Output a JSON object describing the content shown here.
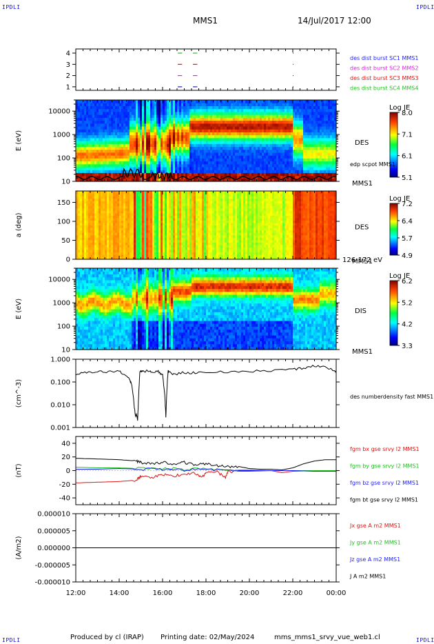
{
  "header": {
    "corner_tl": "IPDLI",
    "corner_tr": "IPDLI",
    "corner_bl": "IPDLI",
    "corner_br": "IPDLI",
    "mission": "MMS1",
    "datetime": "14/Jul/2017 12:00"
  },
  "footer": {
    "produced_by": "Produced by cl (IRAP)",
    "printing_date": "Printing date: 02/May/2024",
    "script": "mms_mms1_srvy_vue_web1.cl"
  },
  "x_axis": {
    "ticks": [
      "12:00",
      "14:00",
      "16:00",
      "18:00",
      "20:00",
      "22:00",
      "00:00"
    ],
    "range_hours": [
      12,
      24
    ]
  },
  "chart_data": [
    {
      "type": "scatter",
      "id": "burst-availability",
      "yticks": [
        "4",
        "3",
        "2",
        "1"
      ],
      "legend": [
        {
          "name": "des dist burst SC1 MMS1",
          "color": "#1a1aff"
        },
        {
          "name": "des dist burst SC2 MMS2",
          "color": "#e020e0"
        },
        {
          "name": "des dist burst SC3 MMS3",
          "color": "#e01010"
        },
        {
          "name": "des dist burst SC4 MMS4",
          "color": "#20c020"
        }
      ],
      "segments": [
        {
          "sc": 4,
          "start": 16.7,
          "end": 16.9,
          "color": "#20c020"
        },
        {
          "sc": 4,
          "start": 17.4,
          "end": 17.6,
          "color": "#20c020"
        },
        {
          "sc": 3,
          "start": 16.7,
          "end": 16.9,
          "color": "#e01010"
        },
        {
          "sc": 3,
          "start": 17.4,
          "end": 17.6,
          "color": "#e01010"
        },
        {
          "sc": 2,
          "start": 16.7,
          "end": 16.9,
          "color": "#e020e0"
        },
        {
          "sc": 2,
          "start": 17.4,
          "end": 17.6,
          "color": "#e020e0"
        },
        {
          "sc": 1,
          "start": 16.7,
          "end": 16.9,
          "color": "#1a1aff"
        },
        {
          "sc": 1,
          "start": 17.4,
          "end": 17.6,
          "color": "#1a1aff"
        }
      ]
    },
    {
      "type": "heatmap",
      "id": "des-energy",
      "ylabel": "E (eV)",
      "scale": "log",
      "ylim": [
        10,
        30000
      ],
      "yticks": [
        "10000",
        "1000",
        "100",
        "10"
      ],
      "instrument": "DES",
      "overlay_label": "edp scpot MMS1",
      "bottom_label": "MMS1",
      "colorbar": {
        "title": "Log JE",
        "ticks": [
          "8.0",
          "7.1",
          "6.1",
          "5.1"
        ],
        "range": [
          5.1,
          8.0
        ]
      }
    },
    {
      "type": "heatmap",
      "id": "des-pitch",
      "ylabel": "a (deg)",
      "ylim": [
        0,
        180
      ],
      "yticks": [
        "150",
        "100",
        "50",
        "0"
      ],
      "instrument": "DES",
      "bottom_label": "MMS1",
      "energy_band": "126-172 eV",
      "colorbar": {
        "title": "Log JE",
        "ticks": [
          "7.2",
          "6.4",
          "5.7",
          "4.9"
        ],
        "range": [
          4.9,
          7.2
        ]
      }
    },
    {
      "type": "heatmap",
      "id": "dis-energy",
      "ylabel": "E (eV)",
      "scale": "log",
      "ylim": [
        10,
        30000
      ],
      "yticks": [
        "10000",
        "1000",
        "100",
        "10"
      ],
      "instrument": "DIS",
      "bottom_label": "MMS1",
      "colorbar": {
        "title": "Log JE",
        "ticks": [
          "6.2",
          "5.2",
          "4.2",
          "3.3"
        ],
        "range": [
          3.3,
          6.2
        ]
      }
    },
    {
      "type": "line",
      "id": "density",
      "ylabel": "(cm^-3)",
      "scale": "log",
      "ylim": [
        0.001,
        1.0
      ],
      "yticks": [
        "1.000",
        "0.100",
        "0.010",
        "0.001"
      ],
      "series": [
        {
          "name": "des numberdensity fast MMS1",
          "color": "#000000",
          "x": [
            12.0,
            12.5,
            13.0,
            13.5,
            14.0,
            14.3,
            14.5,
            14.6,
            14.7,
            14.75,
            14.8,
            14.85,
            14.9,
            14.95,
            15.0,
            15.1,
            15.3,
            15.5,
            15.8,
            16.0,
            16.1,
            16.15,
            16.2,
            16.25,
            16.3,
            16.5,
            17.0,
            17.5,
            18.0,
            19.0,
            20.0,
            21.0,
            22.0,
            22.5,
            23.0,
            23.5,
            23.8,
            24.0
          ],
          "y": [
            0.22,
            0.26,
            0.3,
            0.28,
            0.31,
            0.2,
            0.12,
            0.06,
            0.008,
            0.003,
            0.004,
            0.002,
            0.03,
            0.25,
            0.3,
            0.28,
            0.33,
            0.25,
            0.3,
            0.2,
            0.03,
            0.003,
            0.05,
            0.28,
            0.3,
            0.22,
            0.26,
            0.25,
            0.28,
            0.27,
            0.3,
            0.32,
            0.36,
            0.42,
            0.5,
            0.45,
            0.35,
            0.3
          ]
        }
      ]
    },
    {
      "type": "line",
      "id": "magnetic-field",
      "ylabel": "(nT)",
      "ylim": [
        -50,
        50
      ],
      "yticks": [
        "40",
        "20",
        "0",
        "-20",
        "-40"
      ],
      "series": [
        {
          "name": "fgm bx gse srvy l2 MMS1",
          "color": "#e01010",
          "x": [
            12.0,
            13.0,
            14.0,
            14.8,
            15.0,
            15.5,
            16.0,
            16.5,
            17.0,
            17.5,
            17.8,
            18.0,
            18.5,
            18.9,
            19.0,
            19.5,
            20.0,
            21.0,
            21.5,
            22.0,
            23.0,
            24.0
          ],
          "y": [
            -18,
            -17,
            -16,
            -14,
            -8,
            -10,
            -6,
            -8,
            -5,
            -4,
            -10,
            -4,
            -2,
            -10,
            -2,
            -1,
            -1,
            0,
            -3,
            -1,
            0,
            0
          ]
        },
        {
          "name": "fgm by gse srvy l2 MMS1",
          "color": "#20c020",
          "x": [
            12.0,
            13.0,
            14.0,
            15.0,
            16.0,
            17.0,
            18.0,
            19.0,
            20.0,
            21.0,
            22.0,
            23.0,
            24.0
          ],
          "y": [
            5,
            4,
            4,
            3,
            3,
            2,
            2,
            1,
            1,
            0,
            0,
            0,
            0
          ]
        },
        {
          "name": "fgm bz gse srvy l2 MMS1",
          "color": "#1a1aff",
          "x": [
            12.0,
            13.0,
            14.0,
            15.0,
            16.0,
            17.0,
            18.0,
            19.0,
            20.0,
            21.0,
            22.0,
            23.0,
            24.0
          ],
          "y": [
            2,
            2,
            3,
            2,
            2,
            1,
            2,
            0,
            0,
            0,
            0,
            -1,
            -1
          ]
        },
        {
          "name": "fgm bt gse srvy l2 MMS1",
          "color": "#000000",
          "x": [
            12.0,
            13.0,
            14.0,
            14.8,
            15.0,
            15.5,
            16.0,
            16.5,
            17.0,
            17.5,
            18.0,
            18.5,
            19.0,
            19.5,
            20.0,
            20.5,
            21.0,
            21.5,
            22.0,
            22.5,
            23.0,
            23.5,
            24.0
          ],
          "y": [
            18,
            17,
            16,
            14,
            12,
            10,
            12,
            10,
            12,
            8,
            10,
            7,
            6,
            6,
            3,
            2,
            2,
            1,
            4,
            10,
            14,
            16,
            16
          ]
        }
      ]
    },
    {
      "type": "line",
      "id": "current-density",
      "ylabel": "(A/m2)",
      "ylim": [
        -1e-05,
        1e-05
      ],
      "yticks": [
        "0.000010",
        "0.000005",
        "0.000000",
        "-0.000005",
        "-0.000010"
      ],
      "series": [
        {
          "name": "Jx gse A m2 MMS1",
          "color": "#e01010",
          "x": [
            12,
            24
          ],
          "y": [
            0,
            0
          ]
        },
        {
          "name": "Jy gse A m2 MMS1",
          "color": "#20c020",
          "x": [
            12,
            24
          ],
          "y": [
            0,
            0
          ]
        },
        {
          "name": "Jz gse A m2 MMS1",
          "color": "#1a1aff",
          "x": [
            12,
            24
          ],
          "y": [
            0,
            0
          ]
        },
        {
          "name": "J A m2 MMS1",
          "color": "#000000",
          "x": [
            12,
            24
          ],
          "y": [
            0,
            0
          ]
        }
      ]
    }
  ]
}
